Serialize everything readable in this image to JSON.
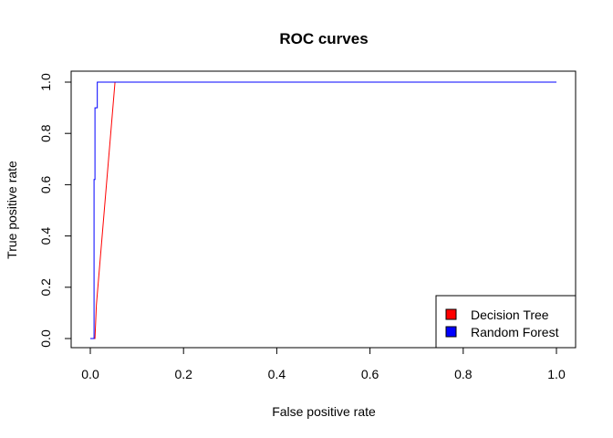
{
  "chart_data": {
    "type": "line",
    "title": "ROC curves",
    "xlabel": "False positive rate",
    "ylabel": "True positive rate",
    "xlim": [
      0.0,
      1.0
    ],
    "ylim": [
      0.0,
      1.0
    ],
    "x_ticks": [
      "0.0",
      "0.2",
      "0.4",
      "0.6",
      "0.8",
      "1.0"
    ],
    "y_ticks": [
      "0.0",
      "0.2",
      "0.4",
      "0.6",
      "0.8",
      "1.0"
    ],
    "grid": false,
    "legend_position": "bottom-right",
    "series": [
      {
        "name": "Decision Tree",
        "color": "#ff0000",
        "points": [
          [
            0.0,
            0.0
          ],
          [
            0.01,
            0.0
          ],
          [
            0.013,
            0.13
          ],
          [
            0.053,
            1.0
          ],
          [
            1.0,
            1.0
          ]
        ]
      },
      {
        "name": "Random Forest",
        "color": "#0000ff",
        "points": [
          [
            0.0,
            0.0
          ],
          [
            0.008,
            0.0
          ],
          [
            0.008,
            0.62
          ],
          [
            0.01,
            0.62
          ],
          [
            0.01,
            0.9
          ],
          [
            0.015,
            0.9
          ],
          [
            0.015,
            1.0
          ],
          [
            1.0,
            1.0
          ]
        ]
      }
    ]
  }
}
